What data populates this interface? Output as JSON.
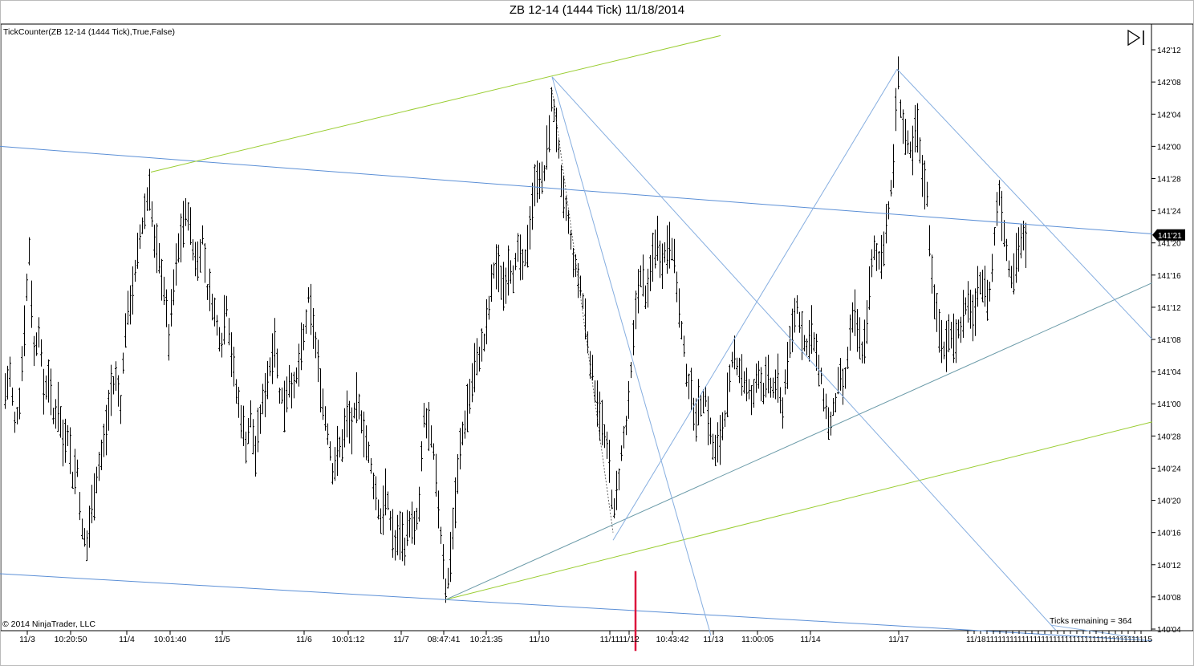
{
  "window": {
    "title": "ZB 12-14 (1444 Tick)  11/18/2014"
  },
  "indicator_label": "TickCounter(ZB 12-14 (1444 Tick),True,False)",
  "copyright": "© 2014 NinjaTrader, LLC",
  "ticks_remaining": "Ticks remaining = 364",
  "current_price_label": "141'21",
  "colors": {
    "bar": "#000000",
    "blue_line": "#5b8fd6",
    "light_blue_line": "#86aee0",
    "teal_line": "#6a9aa8",
    "green_line": "#9acd32",
    "red_marker": "#dc143c",
    "price_marker_bg": "#000000"
  },
  "chart_data": {
    "type": "ohlc",
    "title": "ZB 12-14 (1444 Tick)  11/18/2014",
    "y_axis": {
      "position": "right",
      "ylim": [
        140.125,
        142.4375
      ],
      "tick_labels": [
        "140'04",
        "140'08",
        "140'12",
        "140'16",
        "140'20",
        "140'24",
        "140'28",
        "141'00",
        "141'04",
        "141'08",
        "141'12",
        "141'16",
        "141'20",
        "141'24",
        "141'28",
        "142'00",
        "142'04",
        "142'08",
        "142'12"
      ],
      "tick_values": [
        140.125,
        140.25,
        140.375,
        140.5,
        140.625,
        140.75,
        140.875,
        141.0,
        141.125,
        141.25,
        141.375,
        141.5,
        141.625,
        141.75,
        141.875,
        142.0,
        142.125,
        142.25,
        142.375
      ]
    },
    "x_axis": {
      "tick_labels": [
        "11/3",
        "10:20:50",
        "11/4",
        "10:01:40",
        "11/5",
        "11/6",
        "10:01:12",
        "11/7",
        "08:47:41",
        "10:21:35",
        "11/10",
        "11/11",
        "11/12",
        "10:43:42",
        "11/13",
        "11:00:05",
        "11/14",
        "11/17"
      ],
      "compressed_tail_label": "11/18 ..."
    },
    "price_path_points": [
      [
        0,
        141.18
      ],
      [
        6,
        141.05
      ],
      [
        12,
        141.12
      ],
      [
        18,
        140.92
      ],
      [
        24,
        141.02
      ],
      [
        30,
        141.3
      ],
      [
        36,
        141.6
      ],
      [
        42,
        141.2
      ],
      [
        48,
        141.3
      ],
      [
        54,
        141.05
      ],
      [
        60,
        141.1
      ],
      [
        66,
        140.95
      ],
      [
        72,
        141.0
      ],
      [
        78,
        140.85
      ],
      [
        84,
        140.9
      ],
      [
        90,
        140.72
      ],
      [
        96,
        140.75
      ],
      [
        102,
        140.5
      ],
      [
        108,
        140.45
      ],
      [
        114,
        140.6
      ],
      [
        120,
        140.72
      ],
      [
        126,
        140.8
      ],
      [
        132,
        140.9
      ],
      [
        138,
        141.05
      ],
      [
        144,
        141.1
      ],
      [
        150,
        141.0
      ],
      [
        156,
        141.3
      ],
      [
        162,
        141.4
      ],
      [
        168,
        141.5
      ],
      [
        174,
        141.65
      ],
      [
        180,
        141.75
      ],
      [
        186,
        141.85
      ],
      [
        192,
        141.62
      ],
      [
        198,
        141.55
      ],
      [
        204,
        141.45
      ],
      [
        210,
        141.25
      ],
      [
        216,
        141.45
      ],
      [
        222,
        141.6
      ],
      [
        228,
        141.7
      ],
      [
        234,
        141.75
      ],
      [
        240,
        141.6
      ],
      [
        246,
        141.55
      ],
      [
        252,
        141.65
      ],
      [
        258,
        141.45
      ],
      [
        264,
        141.4
      ],
      [
        270,
        141.3
      ],
      [
        276,
        141.25
      ],
      [
        282,
        141.4
      ],
      [
        288,
        141.2
      ],
      [
        294,
        141.05
      ],
      [
        300,
        140.95
      ],
      [
        306,
        140.85
      ],
      [
        312,
        140.95
      ],
      [
        318,
        140.8
      ],
      [
        324,
        140.95
      ],
      [
        330,
        141.05
      ],
      [
        336,
        141.15
      ],
      [
        342,
        141.25
      ],
      [
        348,
        141.05
      ],
      [
        354,
        141.0
      ],
      [
        360,
        141.1
      ],
      [
        366,
        141.05
      ],
      [
        372,
        141.15
      ],
      [
        378,
        141.25
      ],
      [
        384,
        141.4
      ],
      [
        390,
        141.3
      ],
      [
        396,
        141.15
      ],
      [
        402,
        141.0
      ],
      [
        408,
        140.9
      ],
      [
        414,
        140.75
      ],
      [
        420,
        140.8
      ],
      [
        426,
        140.85
      ],
      [
        432,
        140.95
      ],
      [
        438,
        140.9
      ],
      [
        444,
        141.0
      ],
      [
        450,
        140.95
      ],
      [
        456,
        140.85
      ],
      [
        462,
        140.75
      ],
      [
        468,
        140.65
      ],
      [
        474,
        140.55
      ],
      [
        480,
        140.65
      ],
      [
        486,
        140.55
      ],
      [
        492,
        140.45
      ],
      [
        498,
        140.5
      ],
      [
        504,
        140.45
      ],
      [
        510,
        140.55
      ],
      [
        516,
        140.5
      ],
      [
        522,
        140.6
      ],
      [
        528,
        140.95
      ],
      [
        534,
        140.9
      ],
      [
        540,
        140.8
      ],
      [
        546,
        140.6
      ],
      [
        552,
        140.4
      ],
      [
        556,
        140.25
      ],
      [
        562,
        140.45
      ],
      [
        568,
        140.65
      ],
      [
        574,
        140.85
      ],
      [
        580,
        140.95
      ],
      [
        586,
        141.05
      ],
      [
        592,
        141.15
      ],
      [
        598,
        141.2
      ],
      [
        604,
        141.25
      ],
      [
        610,
        141.4
      ],
      [
        616,
        141.55
      ],
      [
        622,
        141.5
      ],
      [
        628,
        141.45
      ],
      [
        634,
        141.55
      ],
      [
        640,
        141.5
      ],
      [
        646,
        141.6
      ],
      [
        652,
        141.5
      ],
      [
        658,
        141.65
      ],
      [
        664,
        141.8
      ],
      [
        670,
        141.9
      ],
      [
        676,
        141.85
      ],
      [
        682,
        142.0
      ],
      [
        688,
        142.2
      ],
      [
        694,
        142.05
      ],
      [
        700,
        141.8
      ],
      [
        706,
        141.75
      ],
      [
        712,
        141.6
      ],
      [
        718,
        141.5
      ],
      [
        724,
        141.45
      ],
      [
        730,
        141.3
      ],
      [
        736,
        141.15
      ],
      [
        742,
        141.05
      ],
      [
        748,
        140.95
      ],
      [
        754,
        140.85
      ],
      [
        760,
        140.75
      ],
      [
        764,
        140.55
      ],
      [
        770,
        140.7
      ],
      [
        776,
        140.85
      ],
      [
        782,
        140.95
      ],
      [
        788,
        141.2
      ],
      [
        794,
        141.45
      ],
      [
        800,
        141.5
      ],
      [
        806,
        141.4
      ],
      [
        812,
        141.55
      ],
      [
        818,
        141.65
      ],
      [
        824,
        141.55
      ],
      [
        830,
        141.6
      ],
      [
        836,
        141.65
      ],
      [
        842,
        141.5
      ],
      [
        848,
        141.3
      ],
      [
        854,
        141.15
      ],
      [
        860,
        141.05
      ],
      [
        866,
        140.95
      ],
      [
        872,
        141.0
      ],
      [
        878,
        141.05
      ],
      [
        884,
        140.9
      ],
      [
        890,
        140.8
      ],
      [
        896,
        140.85
      ],
      [
        902,
        140.95
      ],
      [
        908,
        141.05
      ],
      [
        914,
        141.2
      ],
      [
        920,
        141.15
      ],
      [
        926,
        141.1
      ],
      [
        932,
        141.05
      ],
      [
        938,
        141.0
      ],
      [
        944,
        141.15
      ],
      [
        950,
        141.05
      ],
      [
        956,
        141.1
      ],
      [
        962,
        141.05
      ],
      [
        968,
        141.1
      ],
      [
        974,
        140.95
      ],
      [
        980,
        141.15
      ],
      [
        986,
        141.25
      ],
      [
        992,
        141.4
      ],
      [
        998,
        141.3
      ],
      [
        1004,
        141.2
      ],
      [
        1010,
        141.3
      ],
      [
        1016,
        141.2
      ],
      [
        1022,
        141.1
      ],
      [
        1028,
        141.0
      ],
      [
        1034,
        140.9
      ],
      [
        1040,
        141.0
      ],
      [
        1046,
        141.1
      ],
      [
        1052,
        141.05
      ],
      [
        1058,
        141.25
      ],
      [
        1064,
        141.35
      ],
      [
        1070,
        141.25
      ],
      [
        1076,
        141.2
      ],
      [
        1082,
        141.4
      ],
      [
        1088,
        141.6
      ],
      [
        1094,
        141.55
      ],
      [
        1100,
        141.6
      ],
      [
        1106,
        141.75
      ],
      [
        1112,
        141.85
      ],
      [
        1118,
        142.3
      ],
      [
        1124,
        142.1
      ],
      [
        1130,
        142.0
      ],
      [
        1136,
        141.95
      ],
      [
        1142,
        142.1
      ],
      [
        1148,
        141.9
      ],
      [
        1154,
        141.85
      ],
      [
        1160,
        141.55
      ],
      [
        1166,
        141.35
      ],
      [
        1172,
        141.25
      ],
      [
        1178,
        141.2
      ],
      [
        1184,
        141.3
      ],
      [
        1190,
        141.25
      ],
      [
        1196,
        141.3
      ],
      [
        1202,
        141.35
      ],
      [
        1208,
        141.4
      ],
      [
        1214,
        141.3
      ],
      [
        1220,
        141.5
      ],
      [
        1226,
        141.45
      ],
      [
        1232,
        141.4
      ],
      [
        1238,
        141.6
      ],
      [
        1244,
        141.85
      ],
      [
        1250,
        141.7
      ],
      [
        1256,
        141.55
      ],
      [
        1262,
        141.5
      ],
      [
        1268,
        141.6
      ],
      [
        1274,
        141.65
      ],
      [
        1278,
        141.6
      ]
    ],
    "drawing_objects": [
      {
        "name": "channel-upper-blue",
        "color": "blue",
        "from": [
          0,
          142.0
        ],
        "to": [
          1436,
          141.66
        ]
      },
      {
        "name": "channel-lower-blue",
        "color": "blue",
        "from": [
          0,
          140.34
        ],
        "to": [
          1436,
          140.08
        ]
      },
      {
        "name": "green-upper",
        "color": "green",
        "from": [
          188,
          141.9
        ],
        "to": [
          898,
          142.43
        ]
      },
      {
        "name": "green-lower",
        "color": "green",
        "from": [
          556,
          140.24
        ],
        "to": [
          1436,
          140.93
        ]
      },
      {
        "name": "teal-trend",
        "color": "teal",
        "from": [
          556,
          140.24
        ],
        "to": [
          1436,
          141.47
        ]
      },
      {
        "name": "fan-from-low-1",
        "color": "light-blue",
        "from": [
          764,
          140.47
        ],
        "to": [
          1118,
          142.3
        ]
      },
      {
        "name": "fan-from-high-1",
        "color": "light-blue",
        "from": [
          688,
          142.27
        ],
        "to": [
          886,
          140.1
        ]
      },
      {
        "name": "fan-from-high-2",
        "color": "light-blue",
        "from": [
          1118,
          142.3
        ],
        "to": [
          1436,
          141.25
        ]
      },
      {
        "name": "fan-from-high-3",
        "color": "light-blue",
        "from": [
          688,
          142.27
        ],
        "to": [
          1316,
          140.12
        ]
      },
      {
        "name": "ticks-remaining-line",
        "color": "light-blue",
        "from": [
          1310,
          140.14
        ],
        "to": [
          1420,
          140.09
        ]
      }
    ],
    "dashed_line": {
      "from": [
        688,
        142.22
      ],
      "to": [
        764,
        140.5
      ]
    },
    "red_marker": {
      "x": 792,
      "from": 140.35,
      "to": 140.04
    },
    "current_price": 141.656
  }
}
